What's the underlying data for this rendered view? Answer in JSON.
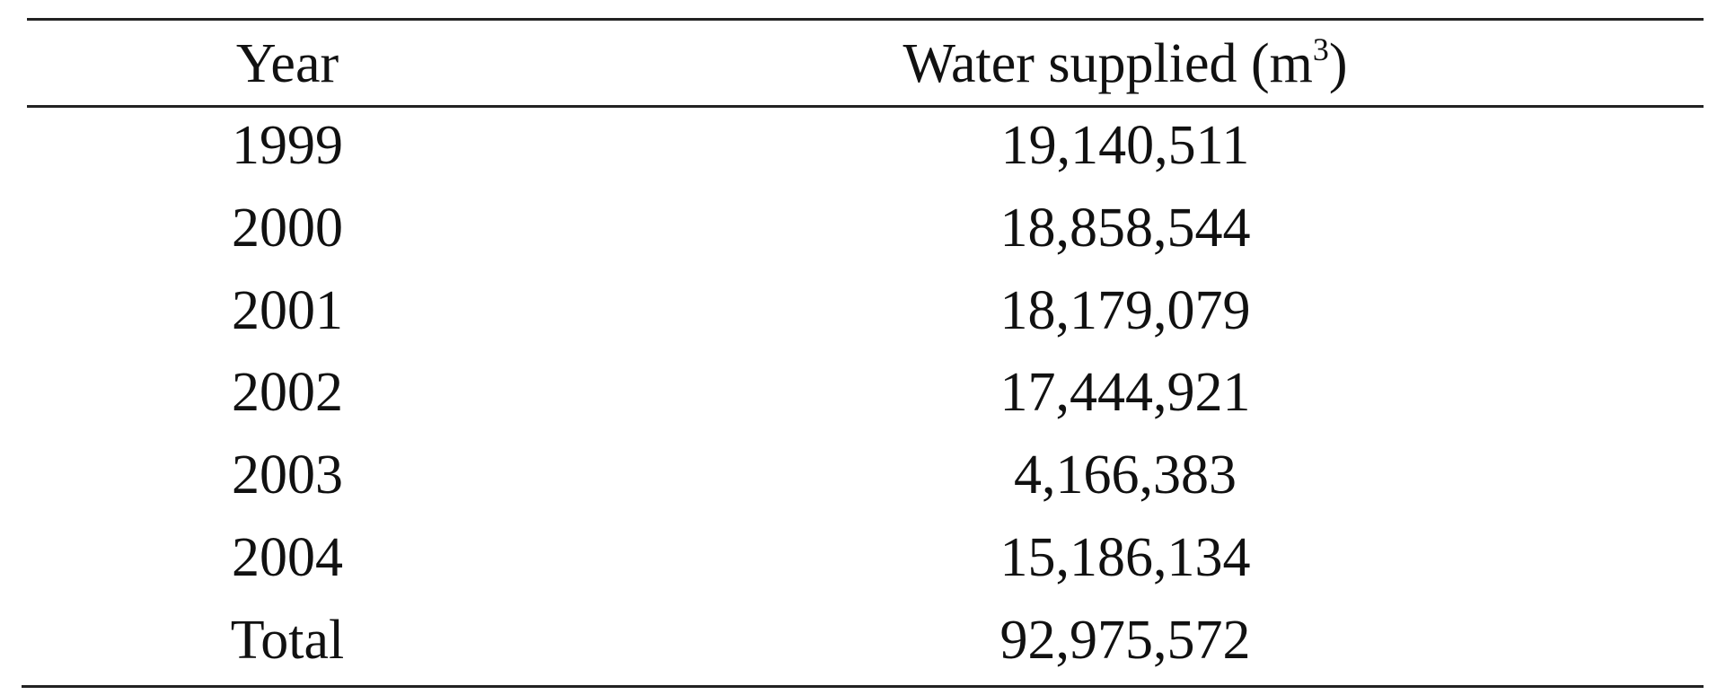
{
  "table": {
    "header": {
      "year": "Year",
      "water": {
        "before": "Water supplied (m",
        "sup": "3",
        "after": ")"
      }
    },
    "rows": [
      [
        "1999",
        "19,140,511"
      ],
      [
        "2000",
        "18,858,544"
      ],
      [
        "2001",
        "18,179,079"
      ],
      [
        "2002",
        "17,444,921"
      ],
      [
        "2003",
        "4,166,383"
      ],
      [
        "2004",
        "15,186,134"
      ],
      [
        "Total",
        "92,975,572"
      ]
    ]
  }
}
